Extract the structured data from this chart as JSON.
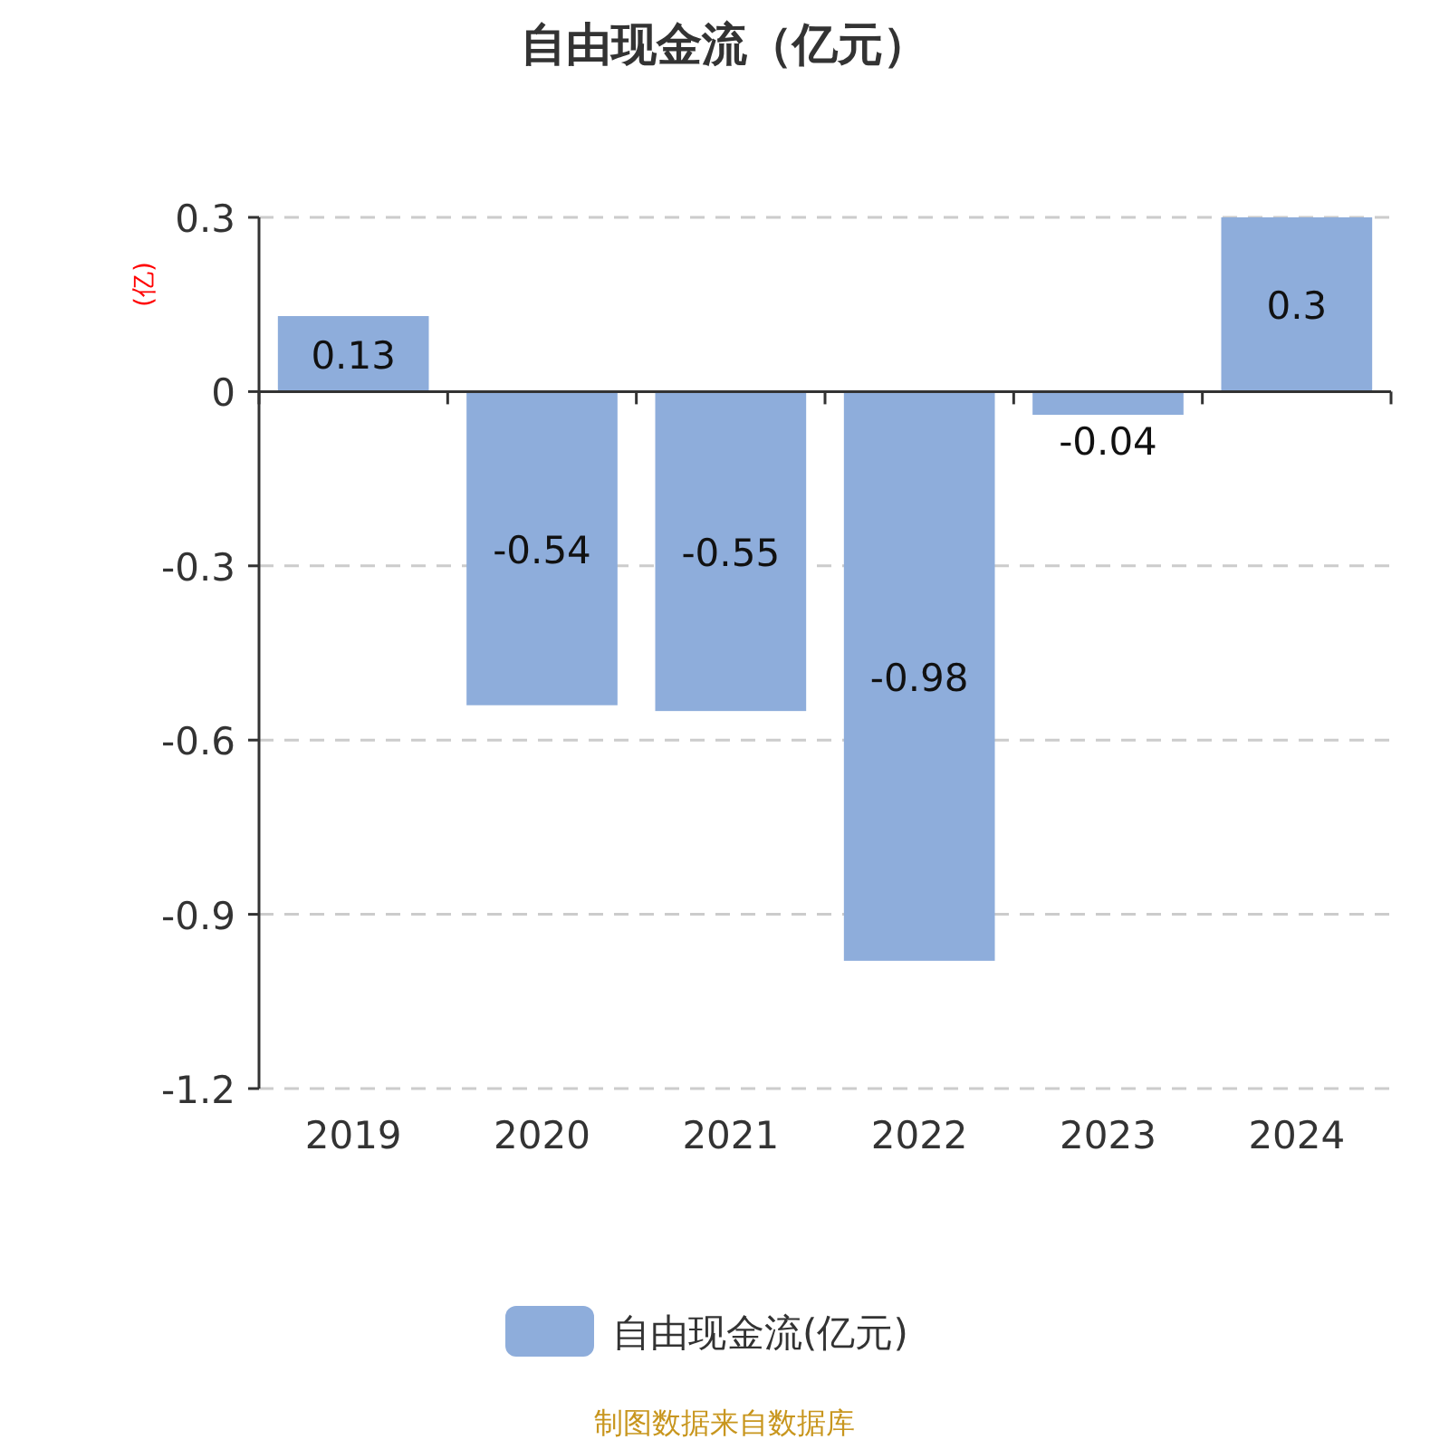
{
  "chart_data": {
    "type": "bar",
    "title": "自由现金流（亿元）",
    "ylabel": "(亿)",
    "categories": [
      "2019",
      "2020",
      "2021",
      "2022",
      "2023",
      "2024"
    ],
    "series": [
      {
        "name": "自由现金流(亿元)",
        "color": "#8eaddb",
        "values": [
          0.13,
          -0.54,
          -0.55,
          -0.98,
          -0.04,
          0.3
        ]
      }
    ],
    "ylim": [
      -1.2,
      0.3
    ],
    "yticks": [
      -1.2,
      -0.9,
      -0.6,
      -0.3,
      0,
      0.3
    ],
    "grid": "y",
    "legend": "bottom",
    "data_labels": true,
    "annotations": [
      "制图数据来自数据库"
    ]
  }
}
